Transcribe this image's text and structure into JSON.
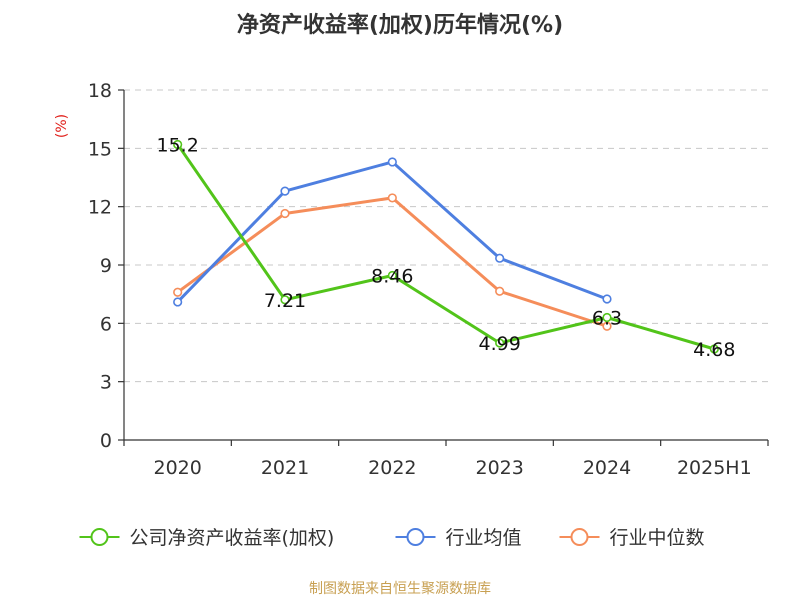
{
  "title": "净资产收益率(加权)历年情况(%)",
  "footer": "制图数据来自恒生聚源数据库",
  "chart_data": {
    "type": "line",
    "title": "净资产收益率(加权)历年情况(%)",
    "ylabel": "(%)",
    "xlabel": "",
    "categories": [
      "2020",
      "2021",
      "2022",
      "2023",
      "2024",
      "2025H1"
    ],
    "ylim": [
      0,
      18
    ],
    "yticks": [
      0,
      3,
      6,
      9,
      12,
      15,
      18
    ],
    "grid": true,
    "legend_position": "bottom",
    "series": [
      {
        "name": "公司净资产收益率(加权)",
        "color": "#52c41a",
        "values": [
          15.2,
          7.21,
          8.46,
          4.99,
          6.3,
          4.68
        ],
        "labels": [
          "15.2",
          "7.21",
          "8.46",
          "4.99",
          "6.3",
          "4.68"
        ]
      },
      {
        "name": "行业均值",
        "color": "#4e7fe0",
        "values": [
          7.1,
          12.8,
          14.3,
          9.35,
          7.25,
          null
        ]
      },
      {
        "name": "行业中位数",
        "color": "#f58d5a",
        "values": [
          7.6,
          11.65,
          12.45,
          7.65,
          5.85,
          null
        ]
      }
    ]
  }
}
